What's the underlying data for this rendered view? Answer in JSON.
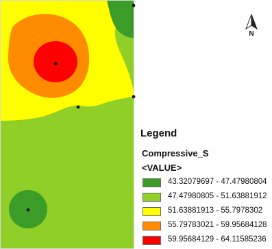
{
  "map": {
    "colors": {
      "class1": "#3b9d27",
      "class2": "#8fcf27",
      "class3": "#ffff00",
      "class4": "#ff8c00",
      "class5": "#ff0000",
      "frame_border": "#d9d9d9",
      "sample_point": "#1a1a1a"
    },
    "north_arrow": {
      "icon": "north-arrow-icon",
      "label": "N"
    }
  },
  "legend": {
    "title": "Legend",
    "field": "Compressive_S",
    "value_header": "<VALUE>",
    "classes": [
      {
        "label": "43.32079697 - 47.47980804",
        "color": "#3b9d27"
      },
      {
        "label": "47.47980805 - 51.63881912",
        "color": "#8fcf27"
      },
      {
        "label": "51.63881913 - 55.7978302",
        "color": "#ffff00"
      },
      {
        "label": "55.79783021 - 59.95684128",
        "color": "#ff8c00"
      },
      {
        "label": "59.95684129 - 64.11585236",
        "color": "#ff0000"
      }
    ]
  }
}
